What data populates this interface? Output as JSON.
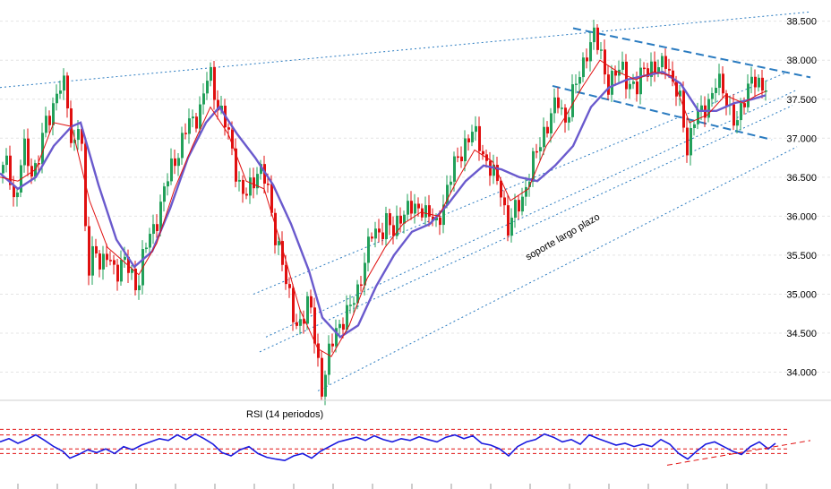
{
  "chart_data": [
    {
      "type": "candlestick",
      "y_axis_labels": [
        "38.500",
        "38.000",
        "37.500",
        "37.000",
        "36.500",
        "36.000",
        "35.500",
        "35.000",
        "34.500",
        "34.000"
      ],
      "y_tick_values": [
        38500,
        38000,
        37500,
        37000,
        36500,
        36000,
        35500,
        35000,
        34500,
        34000
      ],
      "ylim": [
        33650,
        38680
      ],
      "grid": true,
      "colors": {
        "up": "#22a05a",
        "down": "#e01010",
        "slow_ma": "#6a5acd",
        "fast_ma": "#e01010",
        "trendline": "#2a7bc0"
      },
      "close_path": [
        [
          0,
          36550
        ],
        [
          8,
          36700
        ],
        [
          16,
          36100
        ],
        [
          24,
          36900
        ],
        [
          32,
          36600
        ],
        [
          40,
          36650
        ],
        [
          48,
          37100
        ],
        [
          56,
          37350
        ],
        [
          64,
          37700
        ],
        [
          72,
          37600
        ],
        [
          80,
          36800
        ],
        [
          88,
          37400
        ],
        [
          96,
          35200
        ],
        [
          104,
          35700
        ],
        [
          112,
          35300
        ],
        [
          120,
          35500
        ],
        [
          128,
          35300
        ],
        [
          136,
          35400
        ],
        [
          144,
          35300
        ],
        [
          152,
          35100
        ],
        [
          160,
          35550
        ],
        [
          168,
          35800
        ],
        [
          176,
          36050
        ],
        [
          184,
          36400
        ],
        [
          192,
          36700
        ],
        [
          200,
          36900
        ],
        [
          208,
          37150
        ],
        [
          216,
          37250
        ],
        [
          224,
          37450
        ],
        [
          232,
          37850
        ],
        [
          240,
          37500
        ],
        [
          248,
          37300
        ],
        [
          256,
          36900
        ],
        [
          264,
          36500
        ],
        [
          272,
          36250
        ],
        [
          280,
          36350
        ],
        [
          288,
          36700
        ],
        [
          296,
          36450
        ],
        [
          304,
          35800
        ],
        [
          312,
          35600
        ],
        [
          320,
          35000
        ],
        [
          328,
          34600
        ],
        [
          336,
          34700
        ],
        [
          344,
          34900
        ],
        [
          352,
          34300
        ],
        [
          358,
          33800
        ],
        [
          366,
          34200
        ],
        [
          374,
          34550
        ],
        [
          382,
          34700
        ],
        [
          390,
          34800
        ],
        [
          398,
          35050
        ],
        [
          406,
          35450
        ],
        [
          414,
          35750
        ],
        [
          422,
          35800
        ],
        [
          430,
          35950
        ],
        [
          438,
          35750
        ],
        [
          446,
          36050
        ],
        [
          454,
          36100
        ],
        [
          462,
          36050
        ],
        [
          470,
          36150
        ],
        [
          478,
          36000
        ],
        [
          486,
          35850
        ],
        [
          494,
          36200
        ],
        [
          502,
          36500
        ],
        [
          510,
          36750
        ],
        [
          518,
          36950
        ],
        [
          526,
          37050
        ],
        [
          534,
          36950
        ],
        [
          542,
          36700
        ],
        [
          550,
          36500
        ],
        [
          558,
          36350
        ],
        [
          566,
          35850
        ],
        [
          574,
          36050
        ],
        [
          582,
          36250
        ],
        [
          590,
          36550
        ],
        [
          598,
          36800
        ],
        [
          606,
          37100
        ],
        [
          614,
          37300
        ],
        [
          622,
          37450
        ],
        [
          630,
          37250
        ],
        [
          638,
          37550
        ],
        [
          646,
          37800
        ],
        [
          654,
          38150
        ],
        [
          662,
          38300
        ],
        [
          670,
          38050
        ],
        [
          678,
          37700
        ],
        [
          686,
          37800
        ],
        [
          694,
          37900
        ],
        [
          702,
          37700
        ],
        [
          710,
          37600
        ],
        [
          718,
          37950
        ],
        [
          726,
          37900
        ],
        [
          734,
          37850
        ],
        [
          742,
          38050
        ],
        [
          750,
          37700
        ],
        [
          758,
          37450
        ],
        [
          766,
          36900
        ],
        [
          774,
          37250
        ],
        [
          782,
          37300
        ],
        [
          790,
          37500
        ],
        [
          798,
          37700
        ],
        [
          806,
          37600
        ],
        [
          814,
          37400
        ],
        [
          822,
          37150
        ],
        [
          830,
          37500
        ],
        [
          838,
          37850
        ],
        [
          846,
          37600
        ],
        [
          854,
          37650
        ]
      ],
      "fast_ma_path": [
        [
          0,
          36500
        ],
        [
          20,
          36450
        ],
        [
          40,
          36600
        ],
        [
          60,
          37200
        ],
        [
          80,
          37150
        ],
        [
          100,
          36200
        ],
        [
          120,
          35600
        ],
        [
          140,
          35400
        ],
        [
          155,
          35250
        ],
        [
          175,
          35650
        ],
        [
          195,
          36350
        ],
        [
          215,
          36900
        ],
        [
          235,
          37400
        ],
        [
          255,
          37050
        ],
        [
          275,
          36450
        ],
        [
          295,
          36350
        ],
        [
          315,
          35600
        ],
        [
          335,
          34800
        ],
        [
          355,
          34300
        ],
        [
          370,
          34200
        ],
        [
          390,
          34600
        ],
        [
          410,
          35200
        ],
        [
          430,
          35600
        ],
        [
          450,
          35900
        ],
        [
          470,
          36050
        ],
        [
          490,
          36000
        ],
        [
          510,
          36450
        ],
        [
          530,
          36850
        ],
        [
          550,
          36700
        ],
        [
          570,
          36200
        ],
        [
          590,
          36350
        ],
        [
          610,
          36900
        ],
        [
          630,
          37250
        ],
        [
          650,
          37650
        ],
        [
          670,
          38000
        ],
        [
          690,
          37850
        ],
        [
          710,
          37750
        ],
        [
          730,
          37850
        ],
        [
          750,
          37800
        ],
        [
          770,
          37200
        ],
        [
          790,
          37300
        ],
        [
          810,
          37550
        ],
        [
          830,
          37450
        ],
        [
          845,
          37550
        ],
        [
          855,
          37600
        ]
      ],
      "slow_ma_path": [
        [
          0,
          36550
        ],
        [
          20,
          36350
        ],
        [
          40,
          36500
        ],
        [
          60,
          36900
        ],
        [
          80,
          37150
        ],
        [
          90,
          37200
        ],
        [
          110,
          36400
        ],
        [
          130,
          35700
        ],
        [
          150,
          35350
        ],
        [
          170,
          35550
        ],
        [
          190,
          36100
        ],
        [
          210,
          36750
        ],
        [
          230,
          37200
        ],
        [
          245,
          37400
        ],
        [
          265,
          37050
        ],
        [
          285,
          36750
        ],
        [
          305,
          36400
        ],
        [
          325,
          35900
        ],
        [
          345,
          35300
        ],
        [
          360,
          34700
        ],
        [
          380,
          34450
        ],
        [
          400,
          34600
        ],
        [
          420,
          35100
        ],
        [
          440,
          35500
        ],
        [
          460,
          35800
        ],
        [
          480,
          35900
        ],
        [
          500,
          36150
        ],
        [
          520,
          36450
        ],
        [
          540,
          36650
        ],
        [
          560,
          36600
        ],
        [
          580,
          36500
        ],
        [
          600,
          36450
        ],
        [
          620,
          36650
        ],
        [
          640,
          36900
        ],
        [
          660,
          37400
        ],
        [
          680,
          37650
        ],
        [
          700,
          37750
        ],
        [
          720,
          37800
        ],
        [
          740,
          37850
        ],
        [
          760,
          37700
        ],
        [
          780,
          37350
        ],
        [
          800,
          37350
        ],
        [
          820,
          37450
        ],
        [
          840,
          37500
        ],
        [
          855,
          37550
        ]
      ],
      "trendlines": [
        {
          "style": "dotted",
          "p1": [
            0,
            37650
          ],
          "p2": [
            906,
            38620
          ]
        },
        {
          "style": "dotted",
          "p1": [
            283,
            35000
          ],
          "p2": [
            880,
            37850
          ]
        },
        {
          "style": "dotted",
          "p1": [
            297,
            34450
          ],
          "p2": [
            890,
            37620
          ]
        },
        {
          "style": "dotted",
          "p1": [
            290,
            34260
          ],
          "p2": [
            885,
            37420
          ]
        },
        {
          "style": "dotted",
          "p1": [
            355,
            33760
          ],
          "p2": [
            890,
            36890
          ]
        },
        {
          "style": "dashed",
          "p1": [
            640,
            38410
          ],
          "p2": [
            905,
            37780
          ]
        },
        {
          "style": "dashed",
          "p1": [
            617,
            37670
          ],
          "p2": [
            862,
            36980
          ]
        }
      ],
      "annotations": [
        {
          "text": "soporte largo plazo",
          "x": 630,
          "y": 35700,
          "angle": -30
        }
      ]
    },
    {
      "type": "line",
      "title": "RSI (14 periodos)",
      "ylim": [
        0,
        100
      ],
      "levels": [
        {
          "value": 82,
          "color": "#e01010",
          "style": "dashed"
        },
        {
          "value": 70,
          "color": "#e01010",
          "style": "dashed"
        },
        {
          "value": 40,
          "color": "#e01010",
          "style": "dashed"
        },
        {
          "value": 30,
          "color": "#e01010",
          "style": "dashed"
        }
      ],
      "rsi_path": [
        [
          0,
          55
        ],
        [
          10,
          62
        ],
        [
          20,
          52
        ],
        [
          30,
          60
        ],
        [
          40,
          70
        ],
        [
          50,
          58
        ],
        [
          60,
          45
        ],
        [
          70,
          35
        ],
        [
          78,
          20
        ],
        [
          88,
          28
        ],
        [
          98,
          38
        ],
        [
          108,
          32
        ],
        [
          118,
          40
        ],
        [
          128,
          30
        ],
        [
          138,
          45
        ],
        [
          148,
          38
        ],
        [
          158,
          48
        ],
        [
          168,
          55
        ],
        [
          178,
          62
        ],
        [
          188,
          58
        ],
        [
          198,
          70
        ],
        [
          208,
          60
        ],
        [
          218,
          72
        ],
        [
          228,
          62
        ],
        [
          238,
          50
        ],
        [
          248,
          32
        ],
        [
          258,
          25
        ],
        [
          268,
          38
        ],
        [
          278,
          45
        ],
        [
          288,
          30
        ],
        [
          298,
          22
        ],
        [
          308,
          18
        ],
        [
          318,
          15
        ],
        [
          328,
          25
        ],
        [
          338,
          30
        ],
        [
          348,
          20
        ],
        [
          358,
          35
        ],
        [
          368,
          45
        ],
        [
          378,
          55
        ],
        [
          388,
          60
        ],
        [
          398,
          65
        ],
        [
          408,
          58
        ],
        [
          418,
          68
        ],
        [
          428,
          60
        ],
        [
          438,
          55
        ],
        [
          448,
          62
        ],
        [
          458,
          58
        ],
        [
          468,
          66
        ],
        [
          478,
          60
        ],
        [
          488,
          55
        ],
        [
          498,
          65
        ],
        [
          508,
          70
        ],
        [
          518,
          62
        ],
        [
          528,
          68
        ],
        [
          538,
          52
        ],
        [
          548,
          48
        ],
        [
          558,
          40
        ],
        [
          568,
          25
        ],
        [
          578,
          45
        ],
        [
          588,
          55
        ],
        [
          598,
          60
        ],
        [
          608,
          72
        ],
        [
          618,
          65
        ],
        [
          628,
          55
        ],
        [
          638,
          60
        ],
        [
          648,
          50
        ],
        [
          658,
          70
        ],
        [
          668,
          62
        ],
        [
          678,
          55
        ],
        [
          688,
          48
        ],
        [
          698,
          52
        ],
        [
          708,
          45
        ],
        [
          718,
          50
        ],
        [
          728,
          45
        ],
        [
          738,
          60
        ],
        [
          748,
          50
        ],
        [
          758,
          30
        ],
        [
          768,
          18
        ],
        [
          778,
          35
        ],
        [
          788,
          50
        ],
        [
          798,
          55
        ],
        [
          808,
          45
        ],
        [
          818,
          35
        ],
        [
          828,
          28
        ],
        [
          838,
          45
        ],
        [
          848,
          55
        ],
        [
          858,
          40
        ],
        [
          866,
          52
        ]
      ]
    }
  ]
}
